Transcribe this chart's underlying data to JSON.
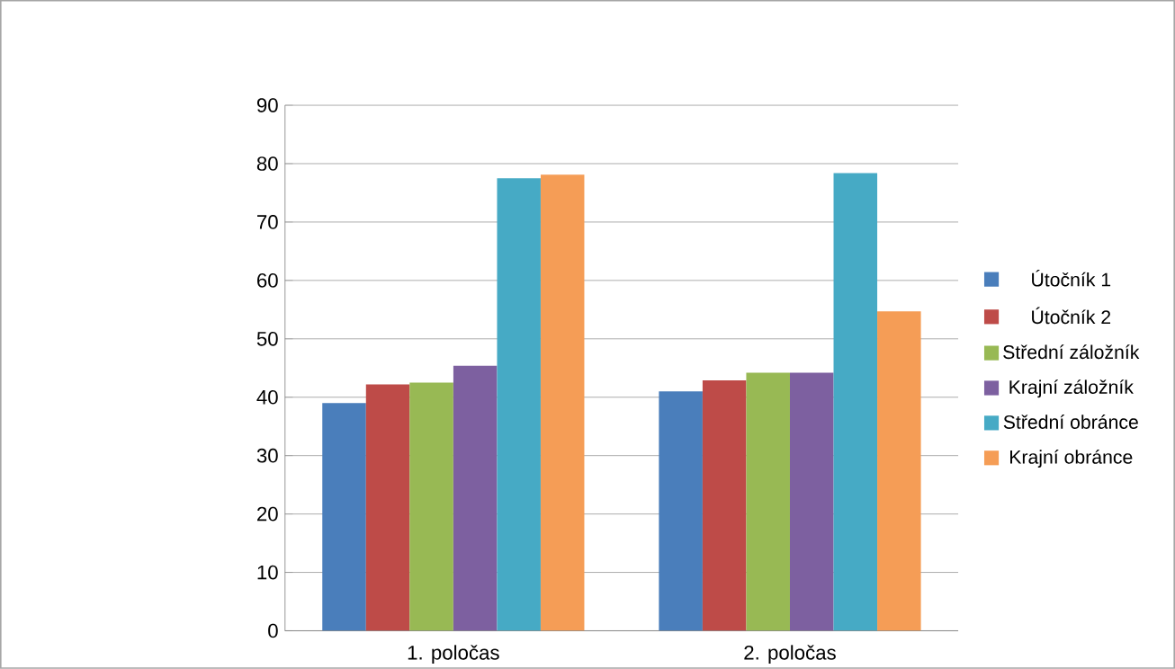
{
  "chart_data": {
    "type": "bar",
    "categories": [
      "1. poločas",
      "2. poločas"
    ],
    "series": [
      {
        "name": "Útočník 1",
        "color": "#4a7ebb",
        "values": [
          39,
          41
        ]
      },
      {
        "name": "Útočník 2",
        "color": "#be4b48",
        "values": [
          42.2,
          42.9
        ]
      },
      {
        "name": "Střední záložník",
        "color": "#98b954",
        "values": [
          42.5,
          44.2
        ]
      },
      {
        "name": "Krajní záložník",
        "color": "#7d60a0",
        "values": [
          45.4,
          44.2
        ]
      },
      {
        "name": "Střední obránce",
        "color": "#46aac5",
        "values": [
          77.5,
          78.4
        ]
      },
      {
        "name": "Krajní obránce",
        "color": "#f59d56",
        "values": [
          78.1,
          54.7
        ]
      }
    ],
    "ylim": [
      0,
      90
    ],
    "yticks": [
      0,
      10,
      20,
      30,
      40,
      50,
      60,
      70,
      80,
      90
    ],
    "grid": "y",
    "legend": "right"
  }
}
